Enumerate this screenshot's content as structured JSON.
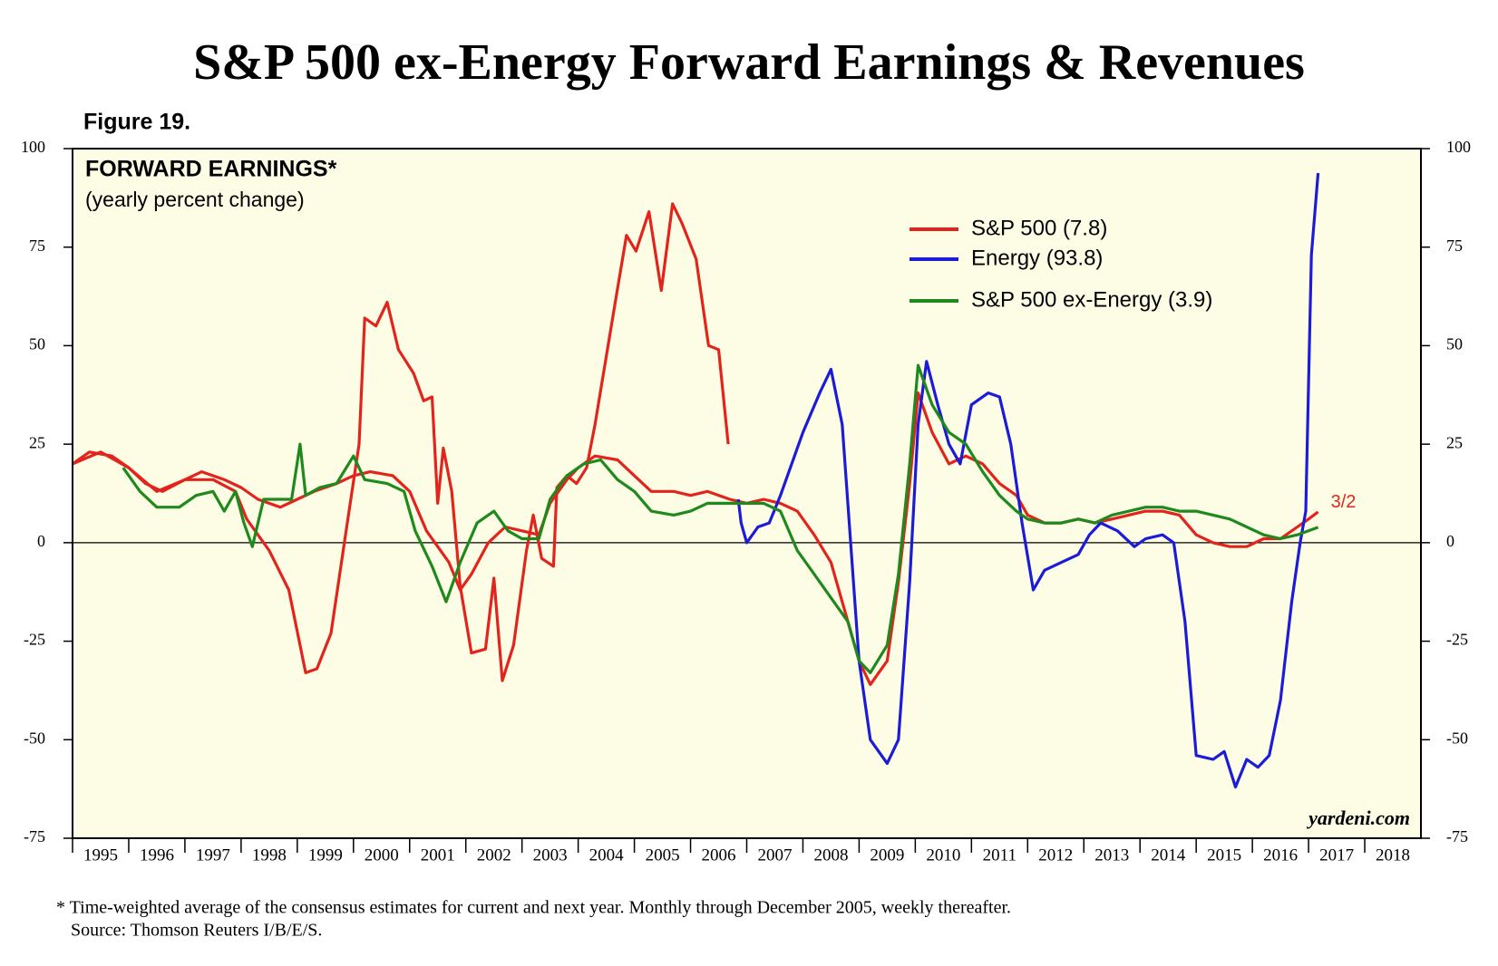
{
  "chart_data": {
    "type": "line",
    "title": "S&P 500 ex-Energy Forward Earnings & Revenues",
    "figure_label": "Figure 19.",
    "panel_title": "FORWARD EARNINGS*",
    "panel_subtitle": "(yearly percent change)",
    "annotations": [
      "3/2",
      "yardeni.com"
    ],
    "footnote": [
      "*   Time-weighted average of the consensus estimates for current and next year. Monthly through December 2005, weekly thereafter.",
      "Source: Thomson Reuters I/B/E/S."
    ],
    "xlim": [
      1995,
      2019
    ],
    "xticks": [
      1995,
      1996,
      1997,
      1998,
      1999,
      2000,
      2001,
      2002,
      2003,
      2004,
      2005,
      2006,
      2007,
      2008,
      2009,
      2010,
      2011,
      2012,
      2013,
      2014,
      2015,
      2016,
      2017,
      2018
    ],
    "ylim": [
      -75,
      100
    ],
    "yticks": [
      -75,
      -50,
      -25,
      0,
      25,
      50,
      75,
      100
    ],
    "y2lim": [
      -75,
      100
    ],
    "y2ticks": [
      -75,
      -50,
      -25,
      0,
      25,
      50,
      75,
      100
    ],
    "zero_line": true,
    "background": "#fdfde6",
    "legend": "upper right",
    "series": [
      {
        "name": "S&P 500 (7.8)",
        "color": "#e3241d",
        "x": [
          1995.0,
          1995.3,
          1995.7,
          1996.0,
          1996.3,
          1996.6,
          1997.0,
          1997.3,
          1997.7,
          1998.0,
          1998.3,
          1998.7,
          1999.0,
          1999.3,
          1999.7,
          2000.0,
          2000.3,
          2000.7,
          2001.0,
          2001.3,
          2001.7,
          2001.9,
          2002.1,
          2002.4,
          2002.7,
          2003.0,
          2003.3,
          2003.5,
          2003.8,
          2004.0,
          2004.3,
          2004.7,
          2005.0,
          2005.3,
          2005.7,
          2006.0,
          2006.3,
          2006.7,
          2007.0,
          2007.3,
          2007.6,
          2007.9,
          2008.2,
          2008.5,
          2008.8,
          2009.0,
          2009.2,
          2009.5,
          2009.7,
          2009.9,
          2010.05,
          2010.3,
          2010.6,
          2010.9,
          2011.2,
          2011.5,
          2011.8,
          2012.0,
          2012.3,
          2012.6,
          2012.9,
          2013.2,
          2013.5,
          2013.8,
          2014.1,
          2014.4,
          2014.7,
          2015.0,
          2015.3,
          2015.6,
          2015.9,
          2016.2,
          2016.5,
          2016.8,
          2017.0,
          2017.17
        ],
        "values": [
          20,
          23,
          22,
          19,
          15,
          13,
          16,
          18,
          16,
          14,
          11,
          9,
          11,
          13,
          15,
          17,
          18,
          17,
          13,
          3,
          -5,
          -12,
          -8,
          0,
          4,
          3,
          2,
          10,
          16,
          19,
          22,
          21,
          17,
          13,
          13,
          12,
          13,
          11,
          10,
          11,
          10,
          8,
          2,
          -5,
          -20,
          -30,
          -36,
          -30,
          -10,
          15,
          38,
          28,
          20,
          22,
          20,
          15,
          12,
          7,
          5,
          5,
          6,
          5,
          6,
          7,
          8,
          8,
          7,
          2,
          0,
          -1,
          -1,
          1,
          1,
          4,
          6,
          7.8
        ]
      },
      {
        "name": "Energy (93.8)",
        "color": "#1b1bd8",
        "color_before": {
          "x": 2006.85,
          "color": "#e3241d"
        },
        "x": [
          1995.0,
          1995.5,
          1996.0,
          1996.5,
          1997.0,
          1997.5,
          1997.9,
          1998.1,
          1998.5,
          1998.85,
          1999.15,
          1999.35,
          1999.6,
          1999.87,
          2000.1,
          2000.2,
          2000.4,
          2000.6,
          2000.8,
          2001.07,
          2001.25,
          2001.4,
          2001.5,
          2001.6,
          2001.75,
          2001.9,
          2002.1,
          2002.35,
          2002.5,
          2002.65,
          2002.85,
          2003.08,
          2003.2,
          2003.35,
          2003.56,
          2003.62,
          2003.8,
          2003.97,
          2004.15,
          2004.3,
          2004.66,
          2004.86,
          2005.03,
          2005.26,
          2005.48,
          2005.68,
          2005.85,
          2006.1,
          2006.32,
          2006.5,
          2006.67,
          2006.85,
          2006.9,
          2007.0,
          2007.2,
          2007.4,
          2007.6,
          2007.8,
          2008.0,
          2008.3,
          2008.5,
          2008.7,
          2008.85,
          2009.0,
          2009.2,
          2009.5,
          2009.7,
          2009.9,
          2010.05,
          2010.2,
          2010.4,
          2010.6,
          2010.8,
          2011.0,
          2011.3,
          2011.5,
          2011.7,
          2011.9,
          2012.1,
          2012.3,
          2012.6,
          2012.9,
          2013.1,
          2013.3,
          2013.6,
          2013.9,
          2014.1,
          2014.4,
          2014.6,
          2014.8,
          2015.0,
          2015.3,
          2015.5,
          2015.7,
          2015.9,
          2016.1,
          2016.3,
          2016.5,
          2016.7,
          2016.85,
          2016.95,
          2017.05,
          2017.17
        ],
        "values": [
          20,
          23,
          19,
          13,
          16,
          16,
          13,
          6,
          -2,
          -12,
          -33,
          -32,
          -23,
          3,
          25,
          57,
          55,
          61,
          49,
          43,
          36,
          37,
          10,
          24,
          13,
          -11,
          -28,
          -27,
          -9,
          -35,
          -26,
          -2,
          7,
          -4,
          -6,
          14,
          17,
          15,
          19,
          30,
          61,
          78,
          74,
          84,
          64,
          86,
          81,
          72,
          50,
          49,
          25,
          11,
          5,
          0,
          4,
          5,
          12,
          20,
          28,
          38,
          44,
          30,
          0,
          -30,
          -50,
          -56,
          -50,
          -10,
          30,
          46,
          35,
          25,
          20,
          35,
          38,
          37,
          25,
          5,
          -12,
          -7,
          -5,
          -3,
          2,
          5,
          3,
          -1,
          1,
          2,
          0,
          -20,
          -54,
          -55,
          -53,
          -62,
          -55,
          -57,
          -54,
          -40,
          -15,
          0,
          8,
          73,
          93.8
        ]
      },
      {
        "name": "S&P 500 ex-Energy (3.9)",
        "color": "#1e8a1e",
        "x": [
          1995.9,
          1996.2,
          1996.5,
          1996.9,
          1997.2,
          1997.5,
          1997.7,
          1997.9,
          1998.05,
          1998.2,
          1998.4,
          1998.6,
          1998.9,
          1999.05,
          1999.15,
          1999.4,
          1999.7,
          2000.0,
          2000.2,
          2000.6,
          2000.9,
          2001.1,
          2001.4,
          2001.65,
          2001.9,
          2002.2,
          2002.5,
          2002.75,
          2003.0,
          2003.3,
          2003.5,
          2003.8,
          2004.1,
          2004.4,
          2004.7,
          2005.0,
          2005.3,
          2005.7,
          2006.0,
          2006.3,
          2006.7,
          2007.0,
          2007.3,
          2007.6,
          2007.9,
          2008.2,
          2008.5,
          2008.8,
          2009.0,
          2009.2,
          2009.5,
          2009.7,
          2009.9,
          2010.05,
          2010.3,
          2010.6,
          2010.9,
          2011.2,
          2011.5,
          2011.8,
          2012.0,
          2012.3,
          2012.6,
          2012.9,
          2013.2,
          2013.5,
          2013.8,
          2014.1,
          2014.4,
          2014.7,
          2015.0,
          2015.3,
          2015.6,
          2015.9,
          2016.2,
          2016.5,
          2016.8,
          2017.17
        ],
        "values": [
          19,
          13,
          9,
          9,
          12,
          13,
          8,
          13,
          5,
          -1,
          11,
          11,
          11,
          25,
          12,
          14,
          15,
          22,
          16,
          15,
          13,
          3,
          -6,
          -15,
          -5,
          5,
          8,
          3,
          1,
          1,
          11,
          17,
          20,
          21,
          16,
          13,
          8,
          7,
          8,
          10,
          10,
          10,
          10,
          8,
          -2,
          -8,
          -14,
          -20,
          -30,
          -33,
          -26,
          -8,
          20,
          45,
          35,
          28,
          25,
          18,
          12,
          8,
          6,
          5,
          5,
          6,
          5,
          7,
          8,
          9,
          9,
          8,
          8,
          7,
          6,
          4,
          2,
          1,
          2,
          3.9
        ]
      }
    ]
  }
}
